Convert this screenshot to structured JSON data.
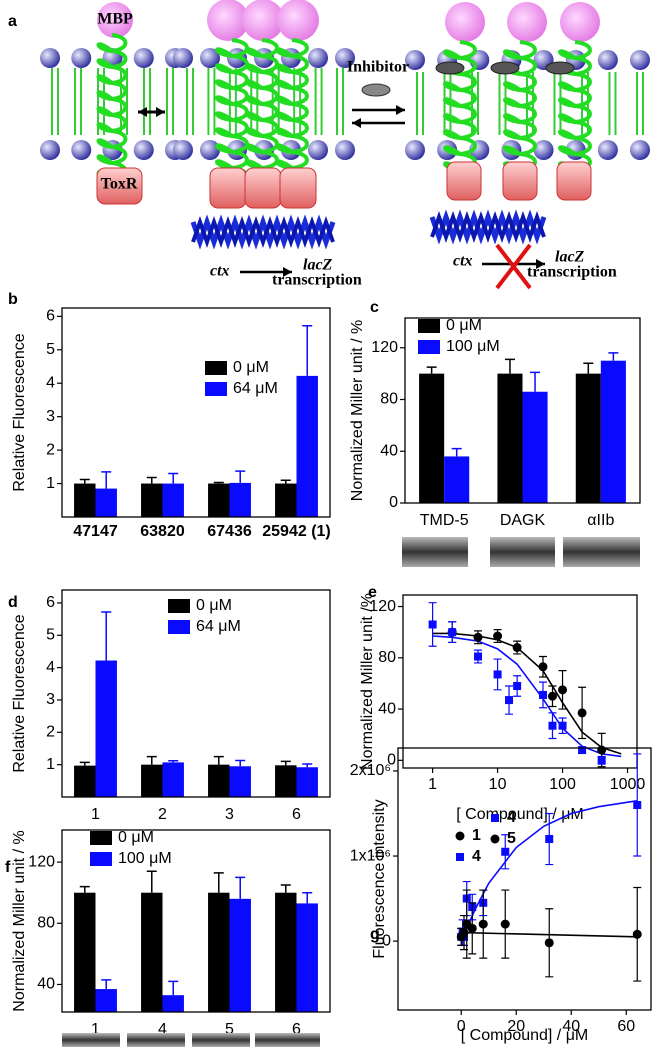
{
  "diagram": {
    "label": "a",
    "mbp": "MBP",
    "toxr": "ToxR",
    "inhibitor": "Inhibitor",
    "left_promoter": "ctx",
    "left_gene": "lacZ",
    "left_transcription": "transcription",
    "right_promoter": "ctx",
    "right_gene": "lacZ",
    "right_transcription": "transcription"
  },
  "chart_data": [
    {
      "type": "bar",
      "label": "b",
      "ylabel": "Relative Fluorescence",
      "categories": [
        "47147",
        "63820",
        "67436",
        "25942 (1)"
      ],
      "series": [
        {
          "name": "0 μM",
          "color": "#000000",
          "values": [
            1.0,
            1.0,
            1.0,
            1.0
          ],
          "errors": [
            0.12,
            0.18,
            0.03,
            0.1
          ]
        },
        {
          "name": "64 μM",
          "color": "#0a0aff",
          "values": [
            0.85,
            1.0,
            1.02,
            4.22
          ],
          "errors": [
            0.5,
            0.3,
            0.35,
            1.5
          ]
        }
      ],
      "ylim": [
        0,
        6.25
      ],
      "yticks": [
        1,
        2,
        3,
        4,
        5,
        6
      ]
    },
    {
      "type": "bar",
      "label": "c",
      "ylabel": "Normalized Miller unit / %",
      "categories": [
        "TMD-5",
        "DAGK",
        "αIIb"
      ],
      "series": [
        {
          "name": "0 μM",
          "color": "#000000",
          "values": [
            100,
            100,
            100
          ],
          "errors": [
            5,
            11,
            8
          ]
        },
        {
          "name": "100 μM",
          "color": "#0a0aff",
          "values": [
            36,
            86,
            110
          ],
          "errors": [
            6,
            15,
            6
          ]
        }
      ],
      "ylim": [
        0,
        143
      ],
      "yticks": [
        0,
        40,
        80,
        120
      ]
    },
    {
      "type": "bar",
      "label": "d",
      "ylabel": "Relative Fluorescence",
      "categories": [
        "1",
        "2",
        "3",
        "6"
      ],
      "series": [
        {
          "name": "0 μM",
          "color": "#000000",
          "values": [
            0.97,
            1.0,
            1.0,
            0.98
          ],
          "errors": [
            0.1,
            0.25,
            0.25,
            0.12
          ]
        },
        {
          "name": "64 μM",
          "color": "#0a0aff",
          "values": [
            4.22,
            1.07,
            0.95,
            0.92
          ],
          "errors": [
            1.5,
            0.05,
            0.18,
            0.1
          ]
        }
      ],
      "ylim": [
        0,
        6.4
      ],
      "yticks": [
        1,
        2,
        3,
        4,
        5,
        6
      ]
    },
    {
      "type": "scatter",
      "label": "e",
      "ylabel": "Normalized Miller unit /%",
      "xlabel": "[ Compound] / μM",
      "xlog": true,
      "xlim": [
        0.35,
        1400
      ],
      "xticks": [
        1,
        10,
        100,
        1000
      ],
      "ylim": [
        -6,
        129
      ],
      "yticks": [
        0,
        40,
        80,
        120
      ],
      "series": [
        {
          "name": "1",
          "color": "#000000",
          "marker": "circle",
          "x": [
            2,
            5,
            10,
            20,
            50,
            70,
            100,
            200,
            400
          ],
          "values": [
            100,
            96,
            97,
            88,
            73,
            50,
            55,
            37,
            8
          ],
          "errors": [
            8,
            5,
            5,
            5,
            8,
            8,
            15,
            20,
            13
          ]
        },
        {
          "name": "4",
          "color": "#0a0aff",
          "marker": "square",
          "x": [
            1,
            2,
            5,
            10,
            15,
            20,
            50,
            70,
            100,
            200,
            400
          ],
          "values": [
            106,
            100,
            81,
            67,
            47,
            58,
            51,
            27,
            27,
            8,
            0
          ],
          "errors": [
            17,
            8,
            5,
            12,
            11,
            8,
            10,
            10,
            6,
            2,
            3
          ]
        }
      ],
      "fits": [
        {
          "color": "#000000",
          "x": [
            1,
            2,
            5,
            10,
            20,
            50,
            100,
            200,
            400,
            800
          ],
          "values": [
            99,
            99,
            97,
            94,
            88,
            70,
            45,
            22,
            10,
            5
          ]
        },
        {
          "color": "#0a0aff",
          "x": [
            1,
            2,
            5,
            10,
            20,
            50,
            100,
            200,
            400,
            800
          ],
          "values": [
            97,
            96,
            93,
            87,
            75,
            48,
            25,
            11,
            5,
            3
          ]
        }
      ]
    },
    {
      "type": "bar",
      "label": "f",
      "ylabel": "Normalized Miller unit / %",
      "categories": [
        "1",
        "4",
        "5",
        "6"
      ],
      "series": [
        {
          "name": "0 μM",
          "color": "#000000",
          "values": [
            100,
            100,
            100,
            100
          ],
          "errors": [
            4,
            14,
            13,
            5
          ]
        },
        {
          "name": "100 μM",
          "color": "#0a0aff",
          "values": [
            37,
            33,
            96,
            93
          ],
          "errors": [
            6,
            9,
            14,
            7
          ]
        }
      ],
      "ylim": [
        22,
        141
      ],
      "yticks": [
        40,
        80,
        120
      ]
    },
    {
      "type": "scatter",
      "label": "g",
      "ylabel": "Fluorescence intensity",
      "xlabel": "[ Compound]  / μM",
      "xlim": [
        -23,
        69
      ],
      "xticks": [
        0,
        20,
        40,
        60
      ],
      "ylim": [
        -810000,
        2270000
      ],
      "yticks": [
        0,
        {
          "value": 1000000,
          "label": "1x10⁶"
        },
        {
          "value": 2000000,
          "label": "2x10⁶"
        }
      ],
      "series": [
        {
          "name": "4",
          "color": "#0a0aff",
          "marker": "square",
          "x": [
            0,
            0.5,
            1,
            2,
            4,
            8,
            16,
            32,
            64
          ],
          "values": [
            50000,
            100000,
            50000,
            500000,
            400000,
            450000,
            1050000,
            1200000,
            1600000
          ],
          "errors": [
            100000,
            150000,
            100000,
            200000,
            150000,
            150000,
            200000,
            300000,
            600000
          ]
        },
        {
          "name": "5",
          "color": "#000000",
          "marker": "circle",
          "x": [
            0,
            1,
            2,
            4,
            8,
            16,
            32,
            64
          ],
          "values": [
            50000,
            100000,
            200000,
            150000,
            200000,
            200000,
            -20000,
            80000
          ],
          "errors": [
            100000,
            200000,
            400000,
            300000,
            400000,
            400000,
            400000,
            550000
          ]
        }
      ],
      "fits": [
        {
          "color": "#0a0aff",
          "x": [
            0,
            5,
            10,
            20,
            30,
            40,
            50,
            64
          ],
          "values": [
            0,
            370000,
            680000,
            1100000,
            1350000,
            1500000,
            1580000,
            1650000
          ]
        },
        {
          "color": "#000000",
          "x": [
            0,
            64
          ],
          "values": [
            100000,
            50000
          ]
        }
      ]
    }
  ]
}
